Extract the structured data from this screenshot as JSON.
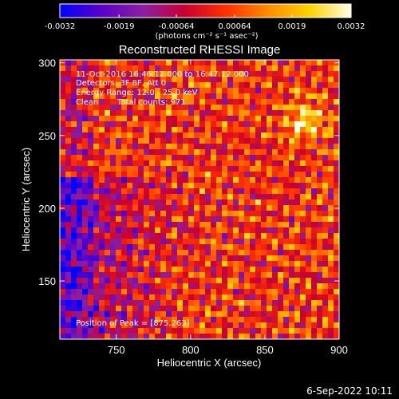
{
  "chart_data": {
    "type": "heatmap",
    "title": "Reconstructed RHESSI Image",
    "xlabel": "Heliocentric X (arcsec)",
    "ylabel": "Heliocentric Y (arcsec)",
    "xlim": [
      712,
      900
    ],
    "ylim": [
      110,
      302
    ],
    "x_ticks": [
      750,
      800,
      850,
      900
    ],
    "y_ticks": [
      150,
      200,
      250,
      300
    ],
    "colorbar": {
      "range": [
        -0.0032,
        0.0032
      ],
      "tick_values": [
        -0.0032,
        -0.0019,
        -0.00064,
        0.00064,
        0.0019,
        0.0032
      ],
      "tick_labels": [
        "-0.0032",
        "-0.0019",
        "-0.00064",
        "0.00064",
        "0.0019",
        "0.0032"
      ],
      "unit_label": "(photons cm⁻² s⁻¹ asec⁻²)",
      "colormap": [
        "#0000ff",
        "#5a00c8",
        "#8c1fa0",
        "#c80032",
        "#ff3000",
        "#ff8c00",
        "#ffd200",
        "#ffffe6"
      ]
    },
    "annotations": {
      "time_range": "11-Oct-2016 16:46:12.000 to 16:47:12.000",
      "detectors": "Detectors: 3F 8F, Att 0",
      "energy": "Energy Range: 12.0 - 25.0 keV",
      "algorithm": "Clean",
      "counts": "Total counts: 971.",
      "peak": "Position of Peak = [875,263]"
    },
    "peak_position": [
      875,
      263
    ],
    "timestamp": "6-Sep-2022 10:11"
  }
}
